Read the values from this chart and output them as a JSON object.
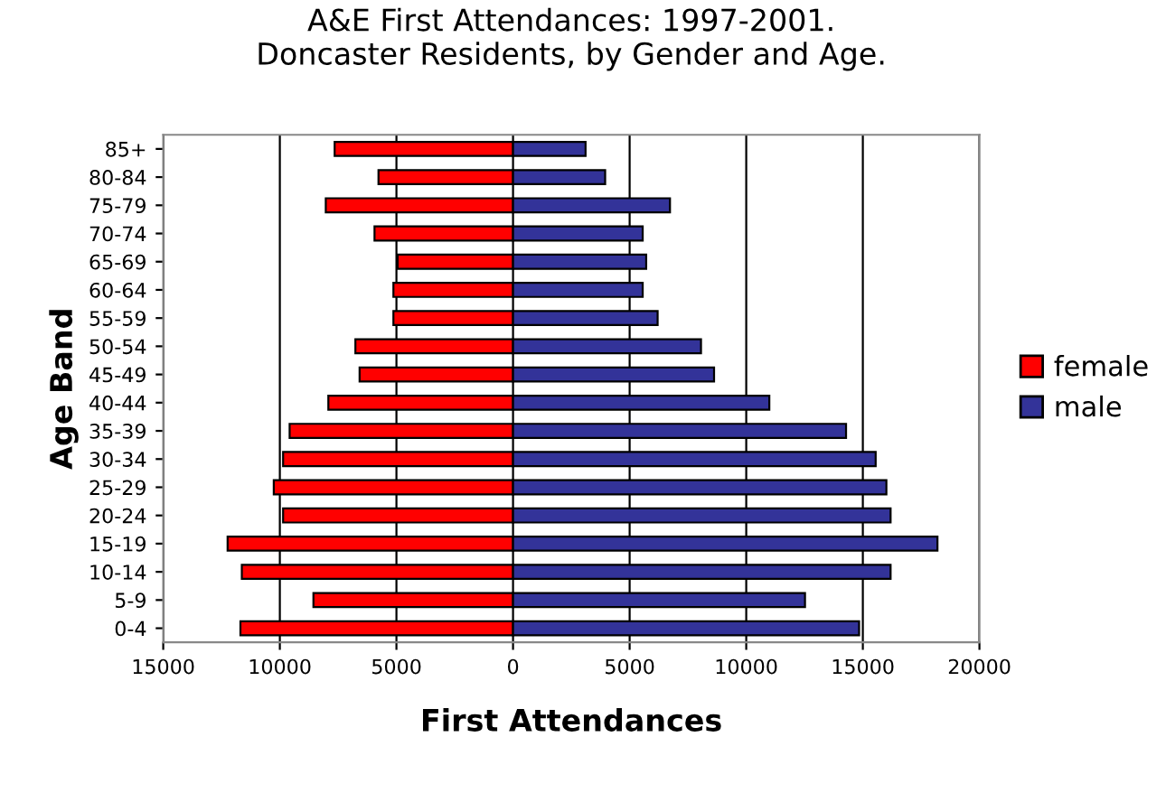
{
  "chart_data": {
    "type": "bar",
    "orientation": "horizontal",
    "stacked": true,
    "title": "A&E First Attendances: 1997-2001.\nDoncaster Residents, by Gender and Age.",
    "xlabel": "First Attendances",
    "ylabel": "Age Band",
    "categories": [
      "85+",
      "80-84",
      "75-79",
      "70-74",
      "65-69",
      "60-64",
      "55-59",
      "50-54",
      "45-49",
      "40-44",
      "35-39",
      "30-34",
      "25-29",
      "20-24",
      "15-19",
      "10-14",
      "5-9",
      "0-4"
    ],
    "series": [
      {
        "name": "female",
        "color": "#ff0000",
        "values": [
          -7650,
          -5770,
          -8030,
          -5940,
          -4950,
          -5130,
          -5130,
          -6760,
          -6580,
          -7920,
          -9580,
          -9860,
          -10260,
          -9860,
          -12240,
          -11630,
          -8560,
          -11690
        ]
      },
      {
        "name": "male",
        "color": "#333399",
        "values": [
          3110,
          3950,
          6730,
          5560,
          5710,
          5560,
          6200,
          8060,
          8620,
          10990,
          14280,
          15550,
          16010,
          16190,
          18200,
          16190,
          12520,
          14840
        ]
      }
    ],
    "xlim": [
      -15000,
      20000
    ],
    "xticks": [
      {
        "value": -15000,
        "label": "15000"
      },
      {
        "value": -10000,
        "label": "10000"
      },
      {
        "value": -5000,
        "label": "5000"
      },
      0,
      5000,
      10000,
      15000,
      20000
    ],
    "grid": "x",
    "legend": "right"
  }
}
